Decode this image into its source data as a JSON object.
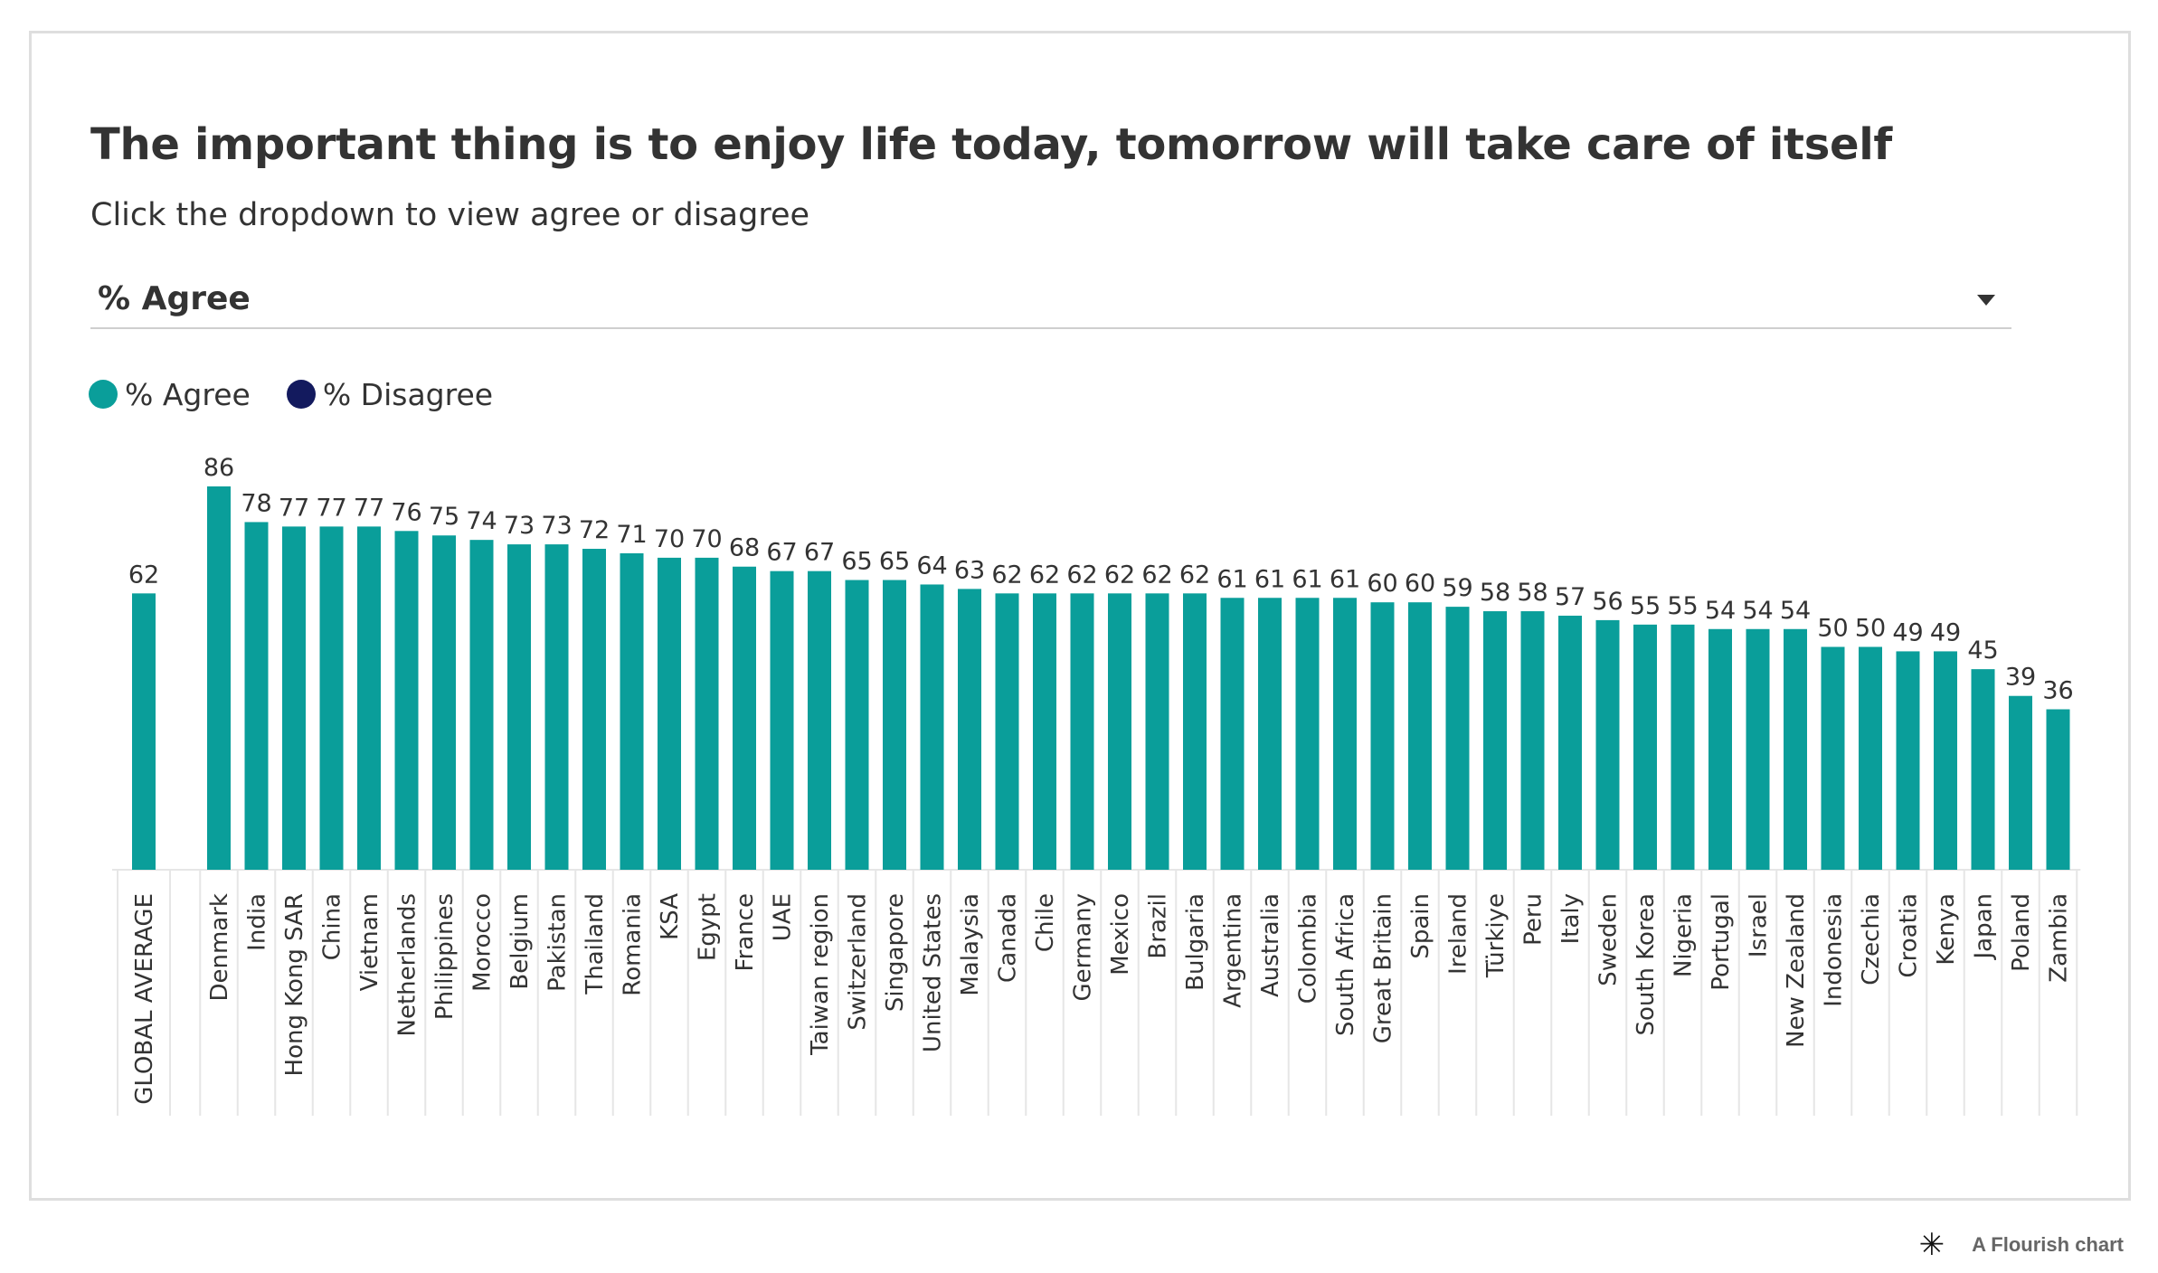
{
  "title": "The important thing is to enjoy life today, tomorrow will take care of itself",
  "subtitle": "Click the dropdown to view agree or disagree",
  "dropdown": {
    "selected": "% Agree"
  },
  "legend": [
    {
      "label": "% Agree",
      "color": "#0a9e9a"
    },
    {
      "label": "% Disagree",
      "color": "#131a5e"
    }
  ],
  "footer": {
    "text": "A Flourish chart",
    "icon": "flourish-asterisk-icon"
  },
  "chart_data": {
    "type": "bar",
    "series": [
      {
        "name": "% Agree",
        "color": "#0a9e9a"
      }
    ],
    "categories": [
      "GLOBAL AVERAGE",
      "Denmark",
      "India",
      "Hong Kong SAR",
      "China",
      "Vietnam",
      "Netherlands",
      "Philippines",
      "Morocco",
      "Belgium",
      "Pakistan",
      "Thailand",
      "Romania",
      "KSA",
      "Egypt",
      "France",
      "UAE",
      "Taiwan region",
      "Switzerland",
      "Singapore",
      "United States",
      "Malaysia",
      "Canada",
      "Chile",
      "Germany",
      "Mexico",
      "Brazil",
      "Bulgaria",
      "Argentina",
      "Australia",
      "Colombia",
      "South Africa",
      "Great Britain",
      "Spain",
      "Ireland",
      "Türkiye",
      "Peru",
      "Italy",
      "Sweden",
      "South Korea",
      "Nigeria",
      "Portugal",
      "Israel",
      "New Zealand",
      "Indonesia",
      "Czechia",
      "Croatia",
      "Kenya",
      "Japan",
      "Poland",
      "Zambia"
    ],
    "values": [
      62,
      86,
      78,
      77,
      77,
      77,
      76,
      75,
      74,
      73,
      73,
      72,
      71,
      70,
      70,
      68,
      67,
      67,
      65,
      65,
      64,
      63,
      62,
      62,
      62,
      62,
      62,
      62,
      61,
      61,
      61,
      61,
      60,
      60,
      59,
      58,
      58,
      57,
      56,
      55,
      55,
      54,
      54,
      54,
      50,
      50,
      49,
      49,
      45,
      39,
      36
    ],
    "ylim": [
      0,
      86
    ],
    "grid": false,
    "legend_position": "top-left",
    "data_labels": true
  }
}
